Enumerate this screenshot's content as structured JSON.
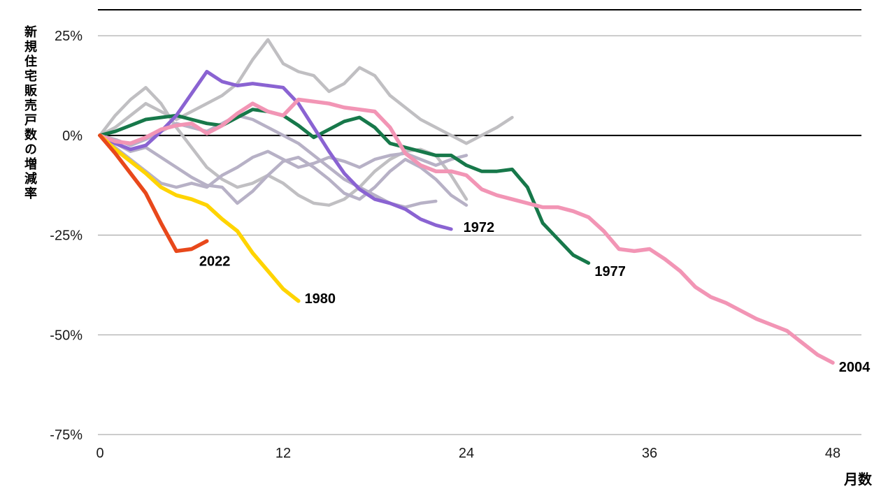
{
  "chart_data": {
    "type": "line",
    "title": "",
    "xlabel": "月数",
    "ylabel": "新規住宅販売戸数の増減率",
    "xlim": [
      0,
      49.8
    ],
    "ylim": [
      -75,
      31.5
    ],
    "grid": true,
    "legend_position": "none",
    "x_ticks": [
      0,
      12,
      24,
      36,
      48
    ],
    "x_tick_labels": [
      "0",
      "12",
      "24",
      "36",
      "48"
    ],
    "y_ticks": [
      25,
      0,
      -25,
      -50,
      -75
    ],
    "y_tick_labels": [
      "25%",
      "0%",
      "-25%",
      "-50%",
      "-75%"
    ],
    "zero_line_color": "#000000",
    "grid_color": "#9a9a9a",
    "series": [
      {
        "id": "gray-1",
        "label": null,
        "color": "#c0bfc2",
        "stroke_width": 4.5,
        "values": [
          0,
          2,
          5,
          8,
          6,
          4,
          6,
          8,
          10,
          13,
          19,
          24,
          18,
          16,
          15,
          11,
          13,
          17,
          15,
          10,
          7,
          4,
          2,
          0,
          -2,
          0,
          2,
          4.5
        ]
      },
      {
        "id": "gray-2",
        "label": null,
        "color": "#c0bfc2",
        "stroke_width": 4.5,
        "values": [
          0,
          5,
          9,
          12,
          8,
          2,
          -3,
          -8,
          -11,
          -13,
          -12,
          -10,
          -12,
          -15,
          -17,
          -17.5,
          -16,
          -13,
          -9,
          -6,
          -4,
          -3.5,
          -5,
          -10,
          -16
        ]
      },
      {
        "id": "gray-3",
        "label": null,
        "color": "#b7b1c6",
        "stroke_width": 4.5,
        "values": [
          0,
          -3,
          -6,
          -9,
          -12,
          -13,
          -12,
          -13,
          -10,
          -8,
          -5.5,
          -4,
          -6,
          -8,
          -7,
          -5.5,
          -6.5,
          -8,
          -6,
          -5,
          -4.5,
          -6,
          -7.5,
          -6,
          -5
        ]
      },
      {
        "id": "gray-4",
        "label": null,
        "color": "#b7b1c6",
        "stroke_width": 4.5,
        "values": [
          0,
          -2,
          -4,
          -3,
          -5.5,
          -8,
          -10.5,
          -12.5,
          -13,
          -17,
          -14,
          -10,
          -6.5,
          -5.5,
          -8,
          -11,
          -14.5,
          -16,
          -13,
          -9,
          -6,
          -8,
          -11,
          -15,
          -17.5
        ]
      },
      {
        "id": "gray-5",
        "label": null,
        "color": "#b7b1c6",
        "stroke_width": 4.5,
        "values": [
          0,
          -1,
          -2.5,
          -1,
          1,
          3,
          2,
          1,
          3,
          5,
          4,
          2,
          0,
          -2,
          -5,
          -8,
          -11,
          -13,
          -15,
          -17,
          -18,
          -17,
          -16.5
        ]
      },
      {
        "id": "1977",
        "label": "1977",
        "color": "#17784a",
        "stroke_width": 5,
        "label_anchor": [
          32.4,
          -34
        ],
        "values": [
          0,
          1,
          2.5,
          4,
          4.5,
          5,
          4,
          3,
          2.5,
          4.5,
          6.5,
          6,
          5,
          2.5,
          -0.5,
          1.5,
          3.5,
          4.5,
          2,
          -2,
          -3,
          -4,
          -5,
          -5,
          -7.5,
          -9,
          -9,
          -8.5,
          -13,
          -22,
          -26,
          -30,
          -32
        ]
      },
      {
        "id": "1972",
        "label": "1972",
        "color": "#8a63d2",
        "stroke_width": 5,
        "label_anchor": [
          23.8,
          -23
        ],
        "values": [
          0,
          -2,
          -3.5,
          -2.5,
          1,
          5,
          10.5,
          16,
          13.5,
          12.5,
          13,
          12.5,
          12,
          8,
          2,
          -4,
          -9.5,
          -13.5,
          -16,
          -17,
          -18.5,
          -21,
          -22.5,
          -23.5
        ]
      },
      {
        "id": "2004",
        "label": "2004",
        "color": "#f295b5",
        "stroke_width": 5.5,
        "label_anchor": [
          48.4,
          -58
        ],
        "values": [
          0,
          -1.5,
          -2,
          -0.5,
          1.5,
          2.5,
          3,
          0.5,
          2.5,
          5.5,
          8,
          6,
          5,
          9,
          8.5,
          8,
          7,
          6.5,
          6,
          2,
          -4.5,
          -7.5,
          -9,
          -9,
          -10,
          -13.5,
          -15,
          -16,
          -17,
          -18,
          -18,
          -19,
          -20.5,
          -24,
          -28.5,
          -29,
          -28.5,
          -31,
          -34,
          -38,
          -40.5,
          -42,
          -44,
          -46,
          -47.5,
          -49,
          -52,
          -55,
          -57
        ]
      },
      {
        "id": "1980",
        "label": "1980",
        "color": "#ffd400",
        "stroke_width": 5.5,
        "label_anchor": [
          13.4,
          -40.8
        ],
        "values": [
          0,
          -3.5,
          -6.5,
          -9.5,
          -13,
          -15,
          -16,
          -17.5,
          -21,
          -24,
          -29.5,
          -34,
          -38.5,
          -41.5
        ]
      },
      {
        "id": "2022",
        "label": "2022",
        "color": "#e8481b",
        "stroke_width": 5.5,
        "label_anchor": [
          6.5,
          -31.5
        ],
        "values": [
          0,
          -4.5,
          -9.5,
          -14.5,
          -22,
          -29,
          -28.5,
          -26.5
        ]
      }
    ]
  }
}
